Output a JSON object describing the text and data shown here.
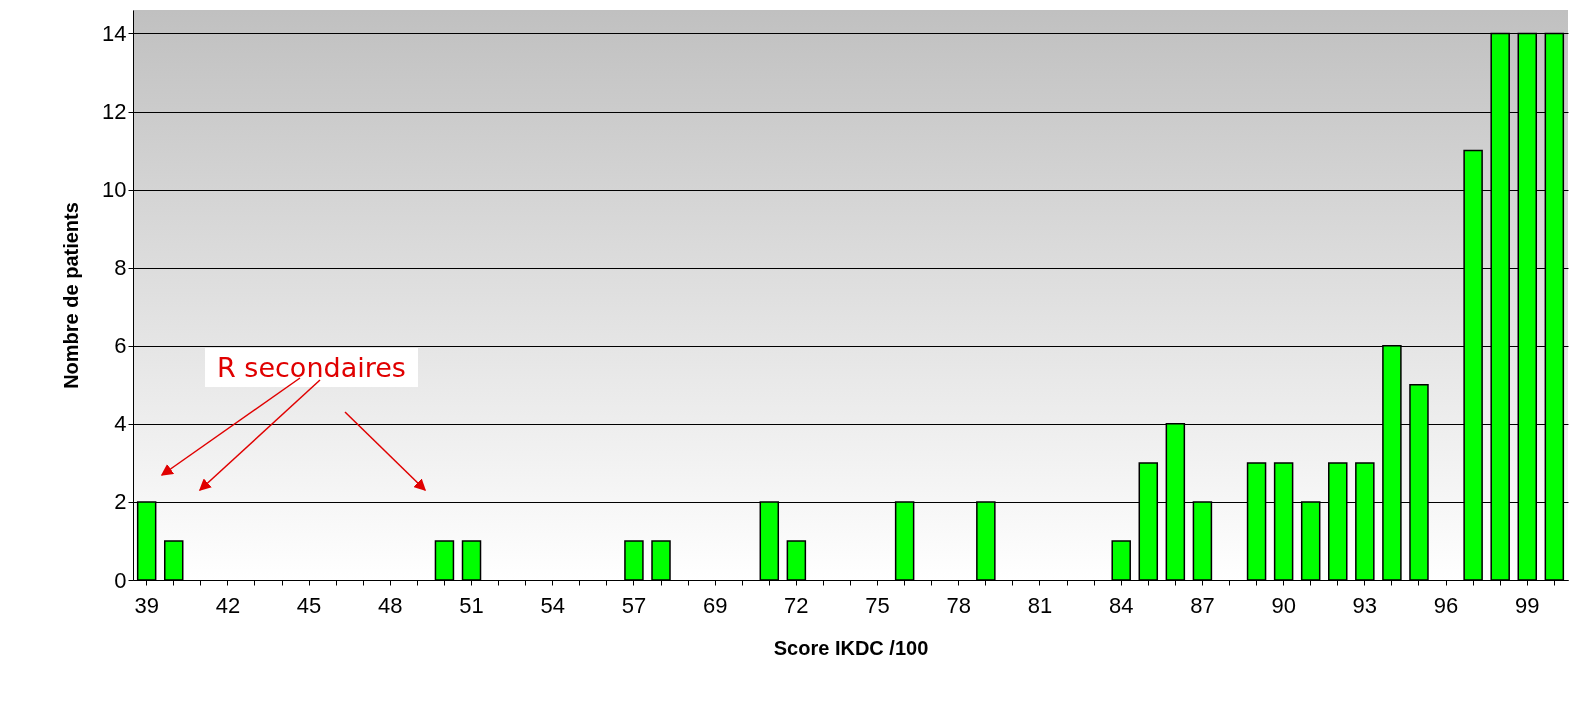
{
  "chart_data": {
    "type": "bar",
    "xlabel": "Score IKDC /100",
    "ylabel": "Nombre de patients",
    "categories": [
      "39",
      null,
      null,
      "42",
      null,
      null,
      "45",
      null,
      null,
      "48",
      null,
      null,
      "51",
      null,
      null,
      "54",
      null,
      null,
      "57",
      null,
      null,
      "69",
      null,
      null,
      "72",
      null,
      null,
      "75",
      null,
      null,
      "78",
      null,
      null,
      "81",
      null,
      null,
      "84",
      null,
      null,
      "87",
      null,
      null,
      "90",
      null,
      null,
      "93",
      null,
      null,
      "96",
      null,
      null,
      "99",
      null
    ],
    "values": [
      2,
      1,
      0,
      0,
      0,
      0,
      0,
      0,
      0,
      0,
      0,
      1,
      1,
      0,
      0,
      0,
      0,
      0,
      1,
      1,
      0,
      0,
      0,
      2,
      1,
      0,
      0,
      0,
      2,
      0,
      0,
      2,
      0,
      0,
      0,
      0,
      1,
      3,
      4,
      2,
      0,
      3,
      3,
      2,
      3,
      3,
      6,
      5,
      0,
      11,
      14,
      14,
      14
    ],
    "color": "#00ff00",
    "ylim": [
      0,
      14.6
    ],
    "yticks": [
      0,
      2,
      4,
      6,
      8,
      10,
      12,
      14
    ],
    "grid": "y",
    "annotations": [
      "R secondaires"
    ]
  }
}
